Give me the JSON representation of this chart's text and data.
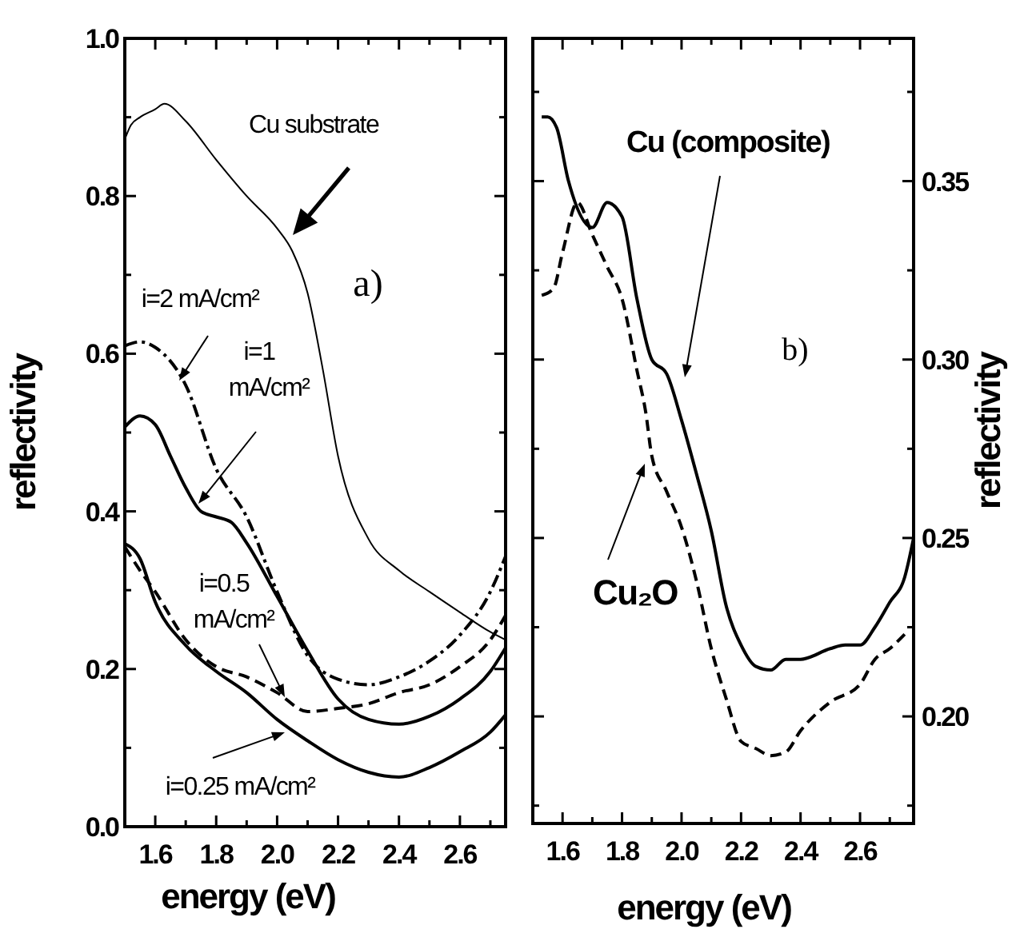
{
  "chart_data": [
    {
      "type": "line",
      "xlabel": "energy (eV)",
      "ylabel": "reflectivity",
      "xlim": [
        1.5,
        2.75
      ],
      "ylim": [
        0,
        1
      ],
      "xticks": [
        {
          "value": 1.5,
          "label": null
        },
        1.6,
        {
          "value": 1.7,
          "label": null
        },
        1.8,
        {
          "value": 1.9,
          "label": null
        },
        {
          "value": 2.0,
          "label": "2.0"
        },
        {
          "value": 2.1,
          "label": null
        },
        2.2,
        {
          "value": 2.3,
          "label": null
        },
        2.4,
        {
          "value": 2.5,
          "label": null
        },
        2.6,
        {
          "value": 2.7,
          "label": null
        }
      ],
      "yticks": [
        {
          "value": 0,
          "label": "0.0"
        },
        {
          "value": 0.1,
          "label": null
        },
        0.2,
        {
          "value": 0.3,
          "label": null
        },
        0.4,
        {
          "value": 0.5,
          "label": null
        },
        0.6,
        {
          "value": 0.7,
          "label": null
        },
        0.8,
        {
          "value": 0.9,
          "label": null
        },
        {
          "value": 1,
          "label": "1.0"
        }
      ],
      "series": [
        {
          "color": "#000000",
          "line_style": "solid",
          "x": [
            1.5,
            1.52,
            1.55,
            1.6,
            1.63,
            1.7,
            1.8,
            1.9,
            2.0,
            2.05,
            2.1,
            2.15,
            2.2,
            2.3,
            2.4,
            2.5,
            2.6,
            2.7,
            2.75
          ],
          "values": [
            0.872,
            0.89,
            0.9,
            0.91,
            0.917,
            0.895,
            0.846,
            0.8,
            0.759,
            0.73,
            0.677,
            0.58,
            0.47,
            0.365,
            0.325,
            0.298,
            0.272,
            0.247,
            0.237
          ]
        },
        {
          "color": "#000000",
          "line_style": "dashdot",
          "x": [
            1.5,
            1.55,
            1.6,
            1.7,
            1.8,
            1.9,
            2.0,
            2.1,
            2.2,
            2.3,
            2.4,
            2.5,
            2.6,
            2.7,
            2.75
          ],
          "values": [
            0.61,
            0.615,
            0.608,
            0.56,
            0.454,
            0.393,
            0.298,
            0.217,
            0.187,
            0.18,
            0.19,
            0.21,
            0.243,
            0.298,
            0.343
          ]
        },
        {
          "color": "#000000",
          "line_style": "solid",
          "x": [
            1.5,
            1.55,
            1.6,
            1.65,
            1.7,
            1.75,
            1.8,
            1.85,
            1.9,
            2.0,
            2.1,
            2.2,
            2.3,
            2.4,
            2.5,
            2.6,
            2.7,
            2.75
          ],
          "values": [
            0.507,
            0.521,
            0.51,
            0.47,
            0.43,
            0.4,
            0.393,
            0.386,
            0.36,
            0.292,
            0.223,
            0.162,
            0.136,
            0.13,
            0.14,
            0.162,
            0.197,
            0.227
          ]
        },
        {
          "color": "#000000",
          "line_style": "dashed",
          "x": [
            1.5,
            1.55,
            1.6,
            1.7,
            1.8,
            1.9,
            2.0,
            2.1,
            2.2,
            2.3,
            2.4,
            2.5,
            2.6,
            2.7,
            2.75
          ],
          "values": [
            0.355,
            0.325,
            0.298,
            0.237,
            0.203,
            0.19,
            0.17,
            0.146,
            0.15,
            0.156,
            0.17,
            0.18,
            0.203,
            0.237,
            0.268
          ]
        },
        {
          "color": "#000000",
          "line_style": "solid",
          "x": [
            1.5,
            1.55,
            1.6,
            1.7,
            1.8,
            1.9,
            2.0,
            2.1,
            2.2,
            2.3,
            2.4,
            2.5,
            2.6,
            2.7,
            2.75
          ],
          "values": [
            0.359,
            0.34,
            0.285,
            0.23,
            0.197,
            0.17,
            0.136,
            0.109,
            0.085,
            0.069,
            0.063,
            0.075,
            0.095,
            0.12,
            0.142
          ]
        }
      ],
      "annotations": [
        "Cu substrate",
        "a)",
        "i=2 mA/cm²",
        "i=1 mA/cm²",
        "i=0.5 mA/cm²",
        "i=0.25 mA/cm²"
      ]
    },
    {
      "type": "line",
      "xlabel": "energy (eV)",
      "y2label": "reflectivity",
      "xlim": [
        1.5,
        2.78
      ],
      "y2lim": [
        0.17,
        0.39
      ],
      "xticks": [
        {
          "value": 1.5,
          "label": null
        },
        1.6,
        {
          "value": 1.7,
          "label": null
        },
        1.8,
        {
          "value": 1.9,
          "label": null
        },
        {
          "value": 2.0,
          "label": "2.0"
        },
        {
          "value": 2.1,
          "label": null
        },
        2.2,
        {
          "value": 2.3,
          "label": null
        },
        2.4,
        {
          "value": 2.5,
          "label": null
        },
        2.6,
        {
          "value": 2.7,
          "label": null
        }
      ],
      "y2ticks": [
        {
          "value": 0.175,
          "label": null
        },
        {
          "value": 0.2,
          "label": "0.20"
        },
        {
          "value": 0.225,
          "label": null
        },
        0.25,
        {
          "value": 0.275,
          "label": null
        },
        {
          "value": 0.3,
          "label": "0.30"
        },
        {
          "value": 0.325,
          "label": null
        },
        0.35,
        {
          "value": 0.375,
          "label": null
        }
      ],
      "series": [
        {
          "color": "#000000",
          "line_style": "solid",
          "axis": "y2",
          "x": [
            1.53,
            1.55,
            1.58,
            1.62,
            1.7,
            1.75,
            1.8,
            1.85,
            1.9,
            1.95,
            2.0,
            2.05,
            2.1,
            2.15,
            2.2,
            2.25,
            2.3,
            2.35,
            2.4,
            2.5,
            2.55,
            2.6,
            2.65,
            2.7,
            2.75,
            2.78
          ],
          "values": [
            0.368,
            0.368,
            0.365,
            0.35,
            0.337,
            0.344,
            0.34,
            0.317,
            0.3,
            0.296,
            0.283,
            0.268,
            0.252,
            0.231,
            0.22,
            0.214,
            0.213,
            0.216,
            0.216,
            0.219,
            0.22,
            0.22,
            0.225,
            0.232,
            0.239,
            0.25
          ]
        },
        {
          "color": "#000000",
          "line_style": "dashed",
          "axis": "y2",
          "x": [
            1.53,
            1.57,
            1.6,
            1.65,
            1.7,
            1.75,
            1.8,
            1.85,
            1.88,
            1.9,
            1.95,
            2.0,
            2.05,
            2.1,
            2.15,
            2.2,
            2.25,
            2.3,
            2.35,
            2.4,
            2.5,
            2.6,
            2.65,
            2.7,
            2.75
          ],
          "values": [
            0.318,
            0.32,
            0.33,
            0.344,
            0.335,
            0.326,
            0.317,
            0.297,
            0.285,
            0.273,
            0.263,
            0.253,
            0.238,
            0.219,
            0.205,
            0.193,
            0.191,
            0.189,
            0.19,
            0.196,
            0.204,
            0.209,
            0.216,
            0.219,
            0.223
          ]
        }
      ],
      "annotations": [
        "Cu (composite)",
        "b)",
        "Cu₂O"
      ]
    }
  ]
}
